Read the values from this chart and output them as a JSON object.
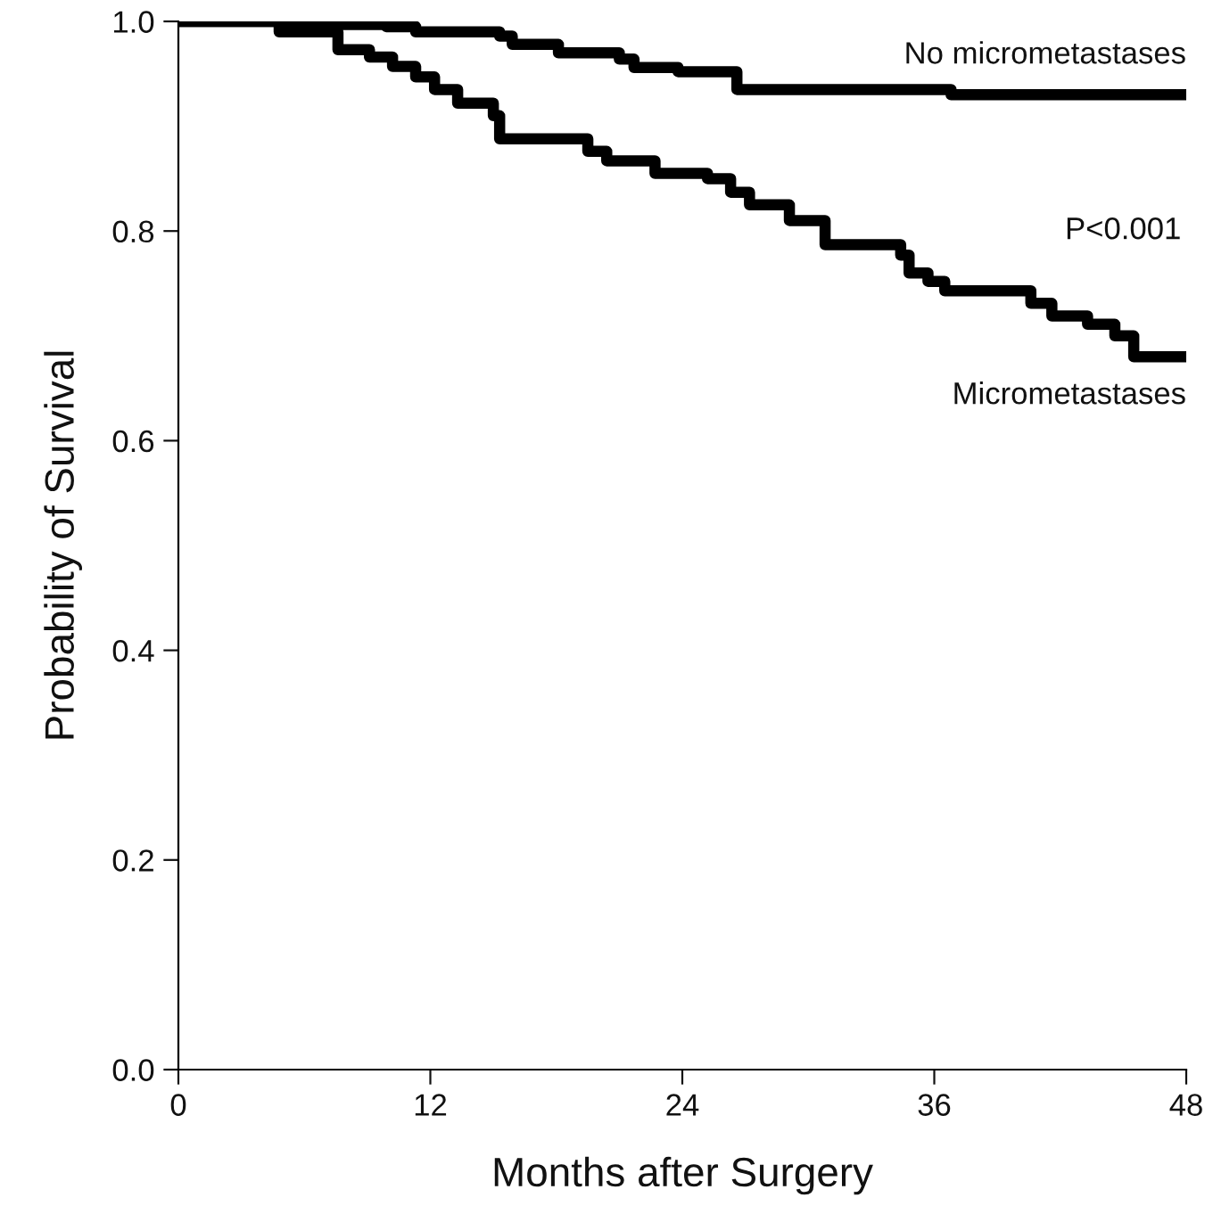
{
  "chart_data": {
    "type": "step",
    "xlabel": "Months after Surgery",
    "ylabel": "Probability of Survival",
    "xlim": [
      0,
      48
    ],
    "ylim": [
      0,
      1
    ],
    "xticks": [
      0,
      12,
      24,
      36,
      48
    ],
    "yticks": [
      {
        "value": 0,
        "label": "0.0"
      },
      {
        "value": 0.2,
        "label": "0.2"
      },
      {
        "value": 0.4,
        "label": "0.4"
      },
      {
        "value": 0.6,
        "label": "0.6"
      },
      {
        "value": 0.8,
        "label": "0.8"
      },
      {
        "value": 1,
        "label": "1.0"
      }
    ],
    "grid": false,
    "legend": false,
    "line_style": "solid",
    "marker": "none",
    "annotations": [
      "P<0.001"
    ],
    "series": [
      {
        "name": "No micrometastases",
        "color": "#000000",
        "x": [
          0,
          5.7,
          9.9,
          11.3,
          15.3,
          15.9,
          18.1,
          21.0,
          21.7,
          23.8,
          26.6,
          36.8,
          48
        ],
        "values": [
          1.0,
          0.997,
          0.995,
          0.99,
          0.986,
          0.978,
          0.97,
          0.964,
          0.956,
          0.952,
          0.935,
          0.93,
          0.93
        ]
      },
      {
        "name": "Micrometastases",
        "color": "#000000",
        "x": [
          0,
          4.8,
          7.6,
          9.1,
          10.2,
          11.3,
          12.2,
          13.3,
          15.0,
          15.3,
          19.5,
          20.4,
          22.7,
          25.2,
          26.3,
          27.2,
          29.1,
          30.8,
          34.4,
          34.8,
          35.7,
          36.5,
          40.6,
          41.6,
          43.3,
          44.6,
          45.5,
          48
        ],
        "values": [
          1.0,
          0.99,
          0.973,
          0.966,
          0.957,
          0.947,
          0.935,
          0.922,
          0.91,
          0.888,
          0.876,
          0.867,
          0.855,
          0.85,
          0.837,
          0.825,
          0.81,
          0.787,
          0.777,
          0.76,
          0.752,
          0.743,
          0.731,
          0.719,
          0.711,
          0.7,
          0.68,
          0.68
        ]
      }
    ]
  }
}
